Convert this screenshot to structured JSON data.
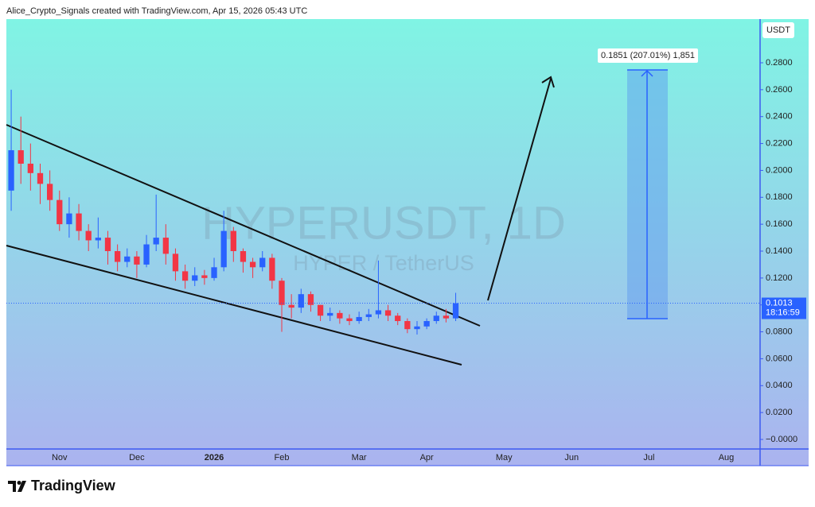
{
  "header": "Alice_Crypto_Signals created with TradingView.com, Apr 15, 2026 05:43 UTC",
  "brand": "TradingView",
  "chart_data": {
    "type": "candlestick",
    "watermark_title": "HYPERUSDT, 1D",
    "watermark_subtitle": "HYPER / TetherUS",
    "currency": "USDT",
    "measure_label": "0.1851 (207.01%) 1,851",
    "last_price_label": "0.1013",
    "countdown": "18:16:59",
    "up_color": "#2962ff",
    "down_color": "#f23645",
    "categories": [
      null,
      null,
      null,
      null,
      null,
      "Nov",
      null,
      null,
      null,
      null,
      null,
      null,
      null,
      "Dec",
      null,
      null,
      null,
      null,
      null,
      null,
      null,
      "2026",
      null,
      null,
      null,
      null,
      null,
      null,
      "Feb",
      null,
      null,
      null,
      null,
      null,
      null,
      null,
      "Mar",
      null,
      null,
      null,
      null,
      null,
      null,
      "Apr",
      null,
      null,
      null,
      null,
      null,
      null,
      null,
      "May",
      null,
      null,
      null,
      null,
      null,
      null,
      "Jun",
      null,
      null,
      null,
      null,
      null,
      null,
      null,
      "Jul",
      null,
      null,
      null,
      null,
      null,
      null,
      null,
      "Aug",
      null,
      null,
      null
    ],
    "open": [
      0.185,
      0.215,
      0.205,
      0.198,
      0.19,
      0.178,
      0.16,
      0.168,
      0.155,
      0.148,
      0.15,
      0.14,
      0.132,
      0.136,
      0.13,
      0.145,
      0.15,
      0.138,
      0.125,
      0.118,
      0.122,
      0.12,
      0.128,
      0.155,
      0.14,
      0.132,
      0.128,
      0.135,
      0.118,
      0.1,
      0.098,
      0.108,
      0.1,
      0.092,
      0.094,
      0.09,
      0.088,
      0.091,
      0.093,
      0.096,
      0.092,
      0.088,
      0.082,
      0.084,
      0.088,
      0.092,
      0.09,
      null,
      null,
      null,
      null,
      null,
      null,
      null,
      null,
      null,
      null,
      null,
      null,
      null,
      null,
      null,
      null,
      null,
      null,
      null,
      null,
      null,
      null,
      null,
      null,
      null,
      null,
      null,
      null,
      null,
      null,
      null
    ],
    "high": [
      0.26,
      0.24,
      0.22,
      0.205,
      0.2,
      0.185,
      0.18,
      0.175,
      0.16,
      0.165,
      0.155,
      0.145,
      0.142,
      0.14,
      0.152,
      0.182,
      0.16,
      0.142,
      0.13,
      0.128,
      0.126,
      0.135,
      0.17,
      0.158,
      0.142,
      0.135,
      0.14,
      0.138,
      0.12,
      0.108,
      0.112,
      0.11,
      0.1,
      0.098,
      0.096,
      0.093,
      0.095,
      0.097,
      0.133,
      0.1,
      0.094,
      0.09,
      0.088,
      0.09,
      0.095,
      0.097,
      0.109,
      null,
      null,
      null,
      null,
      null,
      null,
      null,
      null,
      null,
      null,
      null,
      null,
      null,
      null,
      null,
      null,
      null,
      null,
      null,
      null,
      null,
      null,
      null,
      null,
      null,
      null,
      null,
      null,
      null,
      null,
      null
    ],
    "low": [
      0.17,
      0.19,
      0.185,
      0.175,
      0.17,
      0.155,
      0.15,
      0.148,
      0.14,
      0.142,
      0.13,
      0.125,
      0.128,
      0.12,
      0.128,
      0.14,
      0.13,
      0.118,
      0.112,
      0.114,
      0.115,
      0.118,
      0.125,
      0.132,
      0.124,
      0.12,
      0.125,
      0.112,
      0.08,
      0.09,
      0.094,
      0.095,
      0.088,
      0.088,
      0.086,
      0.085,
      0.086,
      0.088,
      0.09,
      0.088,
      0.085,
      0.079,
      0.078,
      0.082,
      0.086,
      0.087,
      0.088,
      null,
      null,
      null,
      null,
      null,
      null,
      null,
      null,
      null,
      null,
      null,
      null,
      null,
      null,
      null,
      null,
      null,
      null,
      null,
      null,
      null,
      null,
      null,
      null,
      null,
      null,
      null,
      null,
      null,
      null,
      null
    ],
    "close": [
      0.215,
      0.205,
      0.198,
      0.19,
      0.178,
      0.16,
      0.168,
      0.155,
      0.148,
      0.15,
      0.14,
      0.132,
      0.136,
      0.13,
      0.145,
      0.15,
      0.138,
      0.125,
      0.118,
      0.122,
      0.12,
      0.128,
      0.155,
      0.14,
      0.132,
      0.128,
      0.135,
      0.118,
      0.1,
      0.098,
      0.108,
      0.1,
      0.092,
      0.094,
      0.09,
      0.088,
      0.091,
      0.093,
      0.096,
      0.092,
      0.088,
      0.082,
      0.084,
      0.088,
      0.092,
      0.09,
      0.1013,
      null,
      null,
      null,
      null,
      null,
      null,
      null,
      null,
      null,
      null,
      null,
      null,
      null,
      null,
      null,
      null,
      null,
      null,
      null,
      null,
      null,
      null,
      null,
      null,
      null,
      null,
      null,
      null,
      null,
      null,
      null
    ],
    "ylim": [
      -0.0071,
      0.3125
    ],
    "yticks": [
      {
        "value": 0,
        "label": "−0.0000"
      },
      {
        "value": 0.02,
        "label": "0.0200"
      },
      {
        "value": 0.04,
        "label": "0.0400"
      },
      {
        "value": 0.06,
        "label": "0.0600"
      },
      {
        "value": 0.08,
        "label": "0.0800"
      },
      {
        "value": 0.1,
        "label": "0.1000"
      },
      {
        "value": 0.12,
        "label": "0.1200"
      },
      {
        "value": 0.14,
        "label": "0.1400"
      },
      {
        "value": 0.16,
        "label": "0.1600"
      },
      {
        "value": 0.18,
        "label": "0.1800"
      },
      {
        "value": 0.2,
        "label": "0.2000"
      },
      {
        "value": 0.22,
        "label": "0.2200"
      },
      {
        "value": 0.24,
        "label": "0.2400"
      },
      {
        "value": 0.26,
        "label": "0.2600"
      },
      {
        "value": 0.28,
        "label": "0.2800"
      }
    ]
  }
}
